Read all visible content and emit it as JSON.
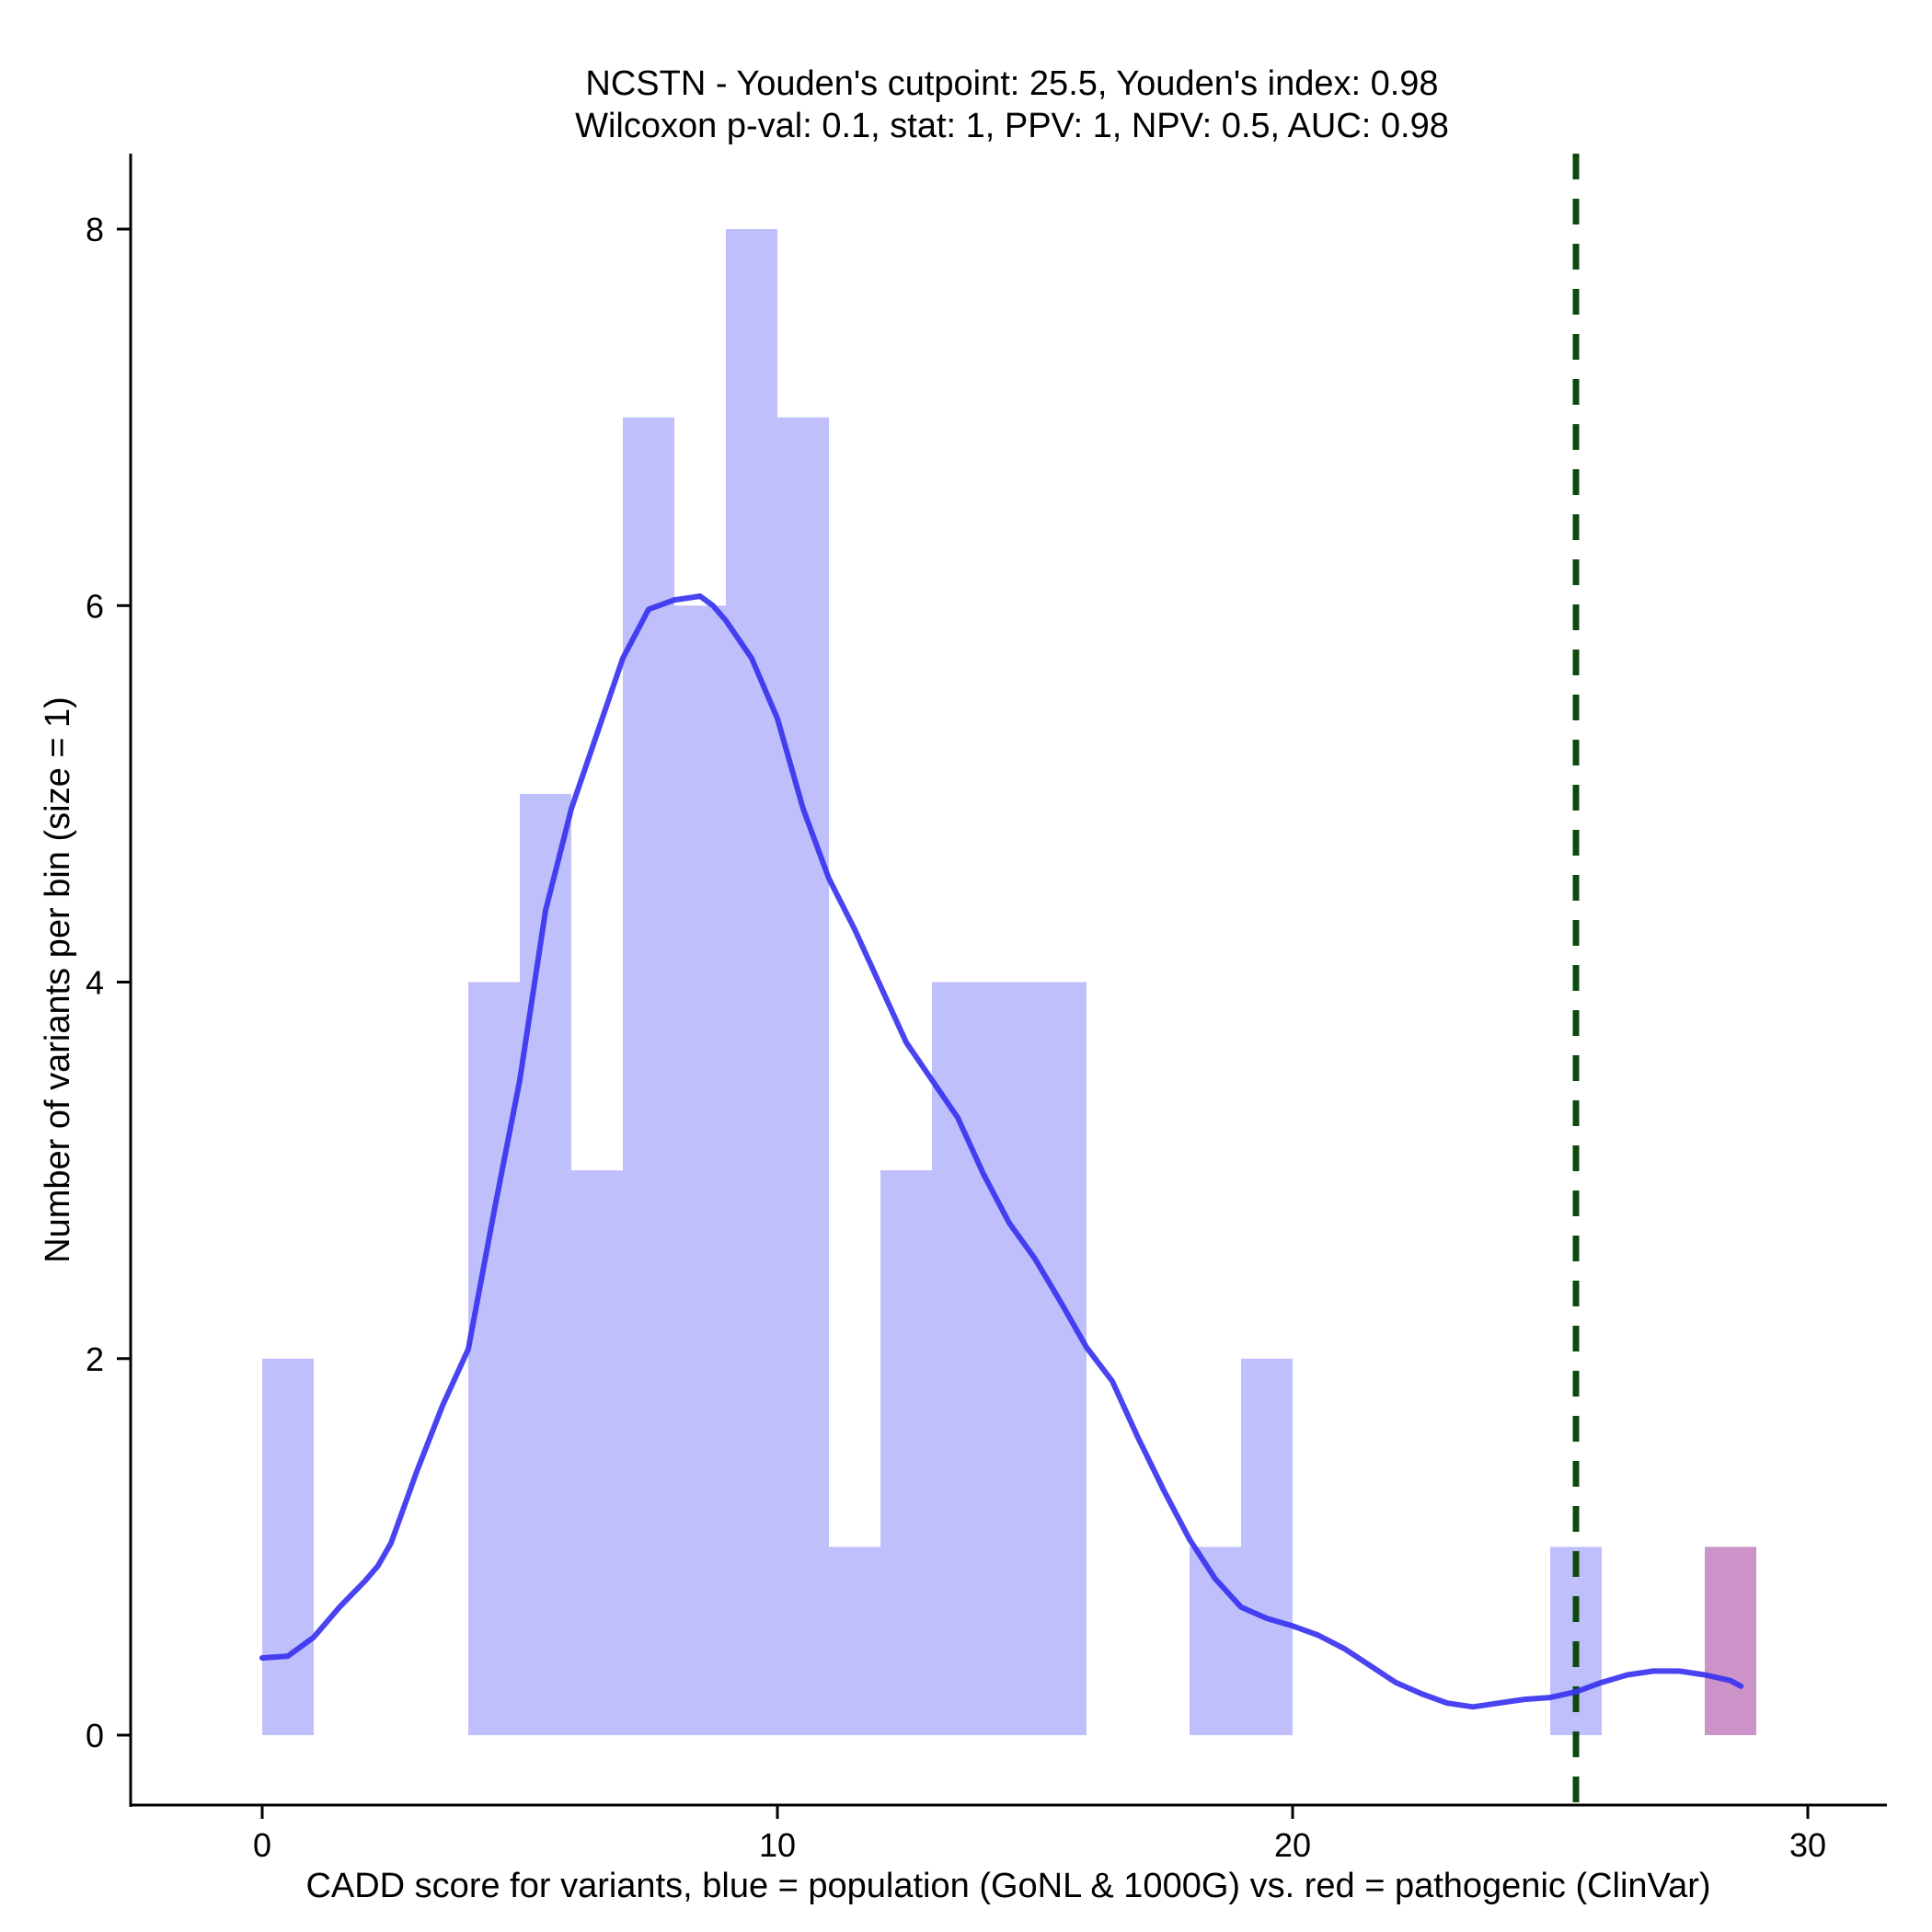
{
  "chart_data": {
    "type": "bar",
    "title_lines": [
      "NCSTN - Youden's cutpoint: 25.5, Youden's index: 0.98",
      "Wilcoxon p-val: 0.1, stat: 1, PPV: 1, NPV: 0.5, AUC: 0.98"
    ],
    "xlabel": "CADD score for variants, blue = population (GoNL & 1000G) vs. red = pathogenic (ClinVar)",
    "ylabel": "Number of variants per bin (size = 1)",
    "xlim": [
      -2.5,
      31.5
    ],
    "ylim": [
      -0.4,
      8.4
    ],
    "xticks": [
      0,
      10,
      20,
      30
    ],
    "yticks": [
      0,
      2,
      4,
      6,
      8
    ],
    "bin_size": 1,
    "cutpoint": 25.5,
    "colors": {
      "population_bar": "#bfbffb",
      "pathogenic_bar": "#cc93c8",
      "density_line": "#3a33f0",
      "cutpoint_line": "#0d4a0d"
    },
    "series": [
      {
        "name": "population",
        "bins": [
          {
            "start": 0,
            "count": 2
          },
          {
            "start": 4,
            "count": 4
          },
          {
            "start": 5,
            "count": 5
          },
          {
            "start": 6,
            "count": 3
          },
          {
            "start": 7,
            "count": 7
          },
          {
            "start": 8,
            "count": 6
          },
          {
            "start": 9,
            "count": 8
          },
          {
            "start": 10,
            "count": 7
          },
          {
            "start": 11,
            "count": 1
          },
          {
            "start": 12,
            "count": 3
          },
          {
            "start": 13,
            "count": 4
          },
          {
            "start": 14,
            "count": 4
          },
          {
            "start": 15,
            "count": 4
          },
          {
            "start": 18,
            "count": 1
          },
          {
            "start": 19,
            "count": 2
          },
          {
            "start": 25,
            "count": 1
          }
        ]
      },
      {
        "name": "pathogenic",
        "bins": [
          {
            "start": 28,
            "count": 1
          }
        ]
      }
    ],
    "density_curve": {
      "x": [
        0,
        0.5,
        1,
        1.5,
        2,
        2.25,
        2.5,
        3,
        3.5,
        4,
        4.5,
        5,
        5.5,
        6,
        6.5,
        7,
        7.5,
        8,
        8.25,
        8.5,
        8.75,
        9,
        9.5,
        10,
        10.5,
        11,
        11.5,
        12,
        12.5,
        13,
        13.5,
        14,
        14.5,
        15,
        15.5,
        16,
        16.5,
        17,
        17.5,
        18,
        18.5,
        19,
        19.5,
        20,
        20.5,
        21,
        21.5,
        22,
        22.5,
        23,
        23.5,
        24,
        24.5,
        25,
        25.5,
        26,
        26.5,
        27,
        27.5,
        28,
        28.5,
        28.7
      ],
      "y": [
        0.41,
        0.42,
        0.52,
        0.68,
        0.82,
        0.9,
        1.02,
        1.4,
        1.75,
        2.05,
        2.78,
        3.48,
        4.38,
        4.92,
        5.32,
        5.72,
        5.98,
        6.03,
        6.04,
        6.05,
        6.0,
        5.92,
        5.72,
        5.4,
        4.92,
        4.55,
        4.28,
        3.98,
        3.68,
        3.48,
        3.28,
        2.98,
        2.72,
        2.53,
        2.3,
        2.06,
        1.88,
        1.58,
        1.3,
        1.04,
        0.83,
        0.68,
        0.62,
        0.58,
        0.53,
        0.46,
        0.37,
        0.28,
        0.22,
        0.17,
        0.15,
        0.17,
        0.19,
        0.2,
        0.23,
        0.28,
        0.32,
        0.34,
        0.34,
        0.32,
        0.29,
        0.26
      ]
    }
  }
}
